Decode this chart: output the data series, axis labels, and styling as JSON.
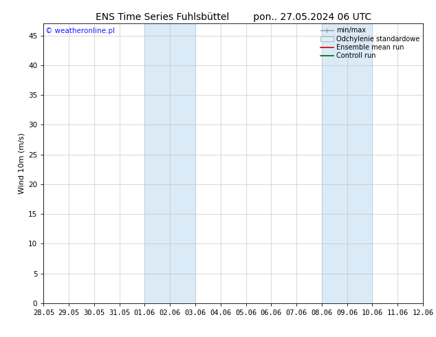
{
  "title": "ENS Time Series Fuhlsbüttel        pon.. 27.05.2024 06 UTC",
  "ylabel": "Wind 10m (m/s)",
  "ylim": [
    0,
    47
  ],
  "yticks": [
    0,
    5,
    10,
    15,
    20,
    25,
    30,
    35,
    40,
    45
  ],
  "xtick_labels": [
    "28.05",
    "29.05",
    "30.05",
    "31.05",
    "01.06",
    "02.06",
    "03.06",
    "04.06",
    "05.06",
    "06.06",
    "07.06",
    "08.06",
    "09.06",
    "10.06",
    "11.06",
    "12.06"
  ],
  "xtick_positions": [
    0,
    1,
    2,
    3,
    4,
    5,
    6,
    7,
    8,
    9,
    10,
    11,
    12,
    13,
    14,
    15
  ],
  "shaded_regions": [
    {
      "x_start": 4,
      "x_end": 6,
      "color": "#daeaf6"
    },
    {
      "x_start": 11,
      "x_end": 13,
      "color": "#daeaf6"
    }
  ],
  "watermark_text": "© weatheronline.pl",
  "watermark_color": "#1a1aff",
  "background_color": "#ffffff",
  "plot_background": "#ffffff",
  "title_fontsize": 10,
  "axis_label_fontsize": 8,
  "tick_fontsize": 7.5,
  "legend_fontsize": 7,
  "watermark_fontsize": 7.5
}
